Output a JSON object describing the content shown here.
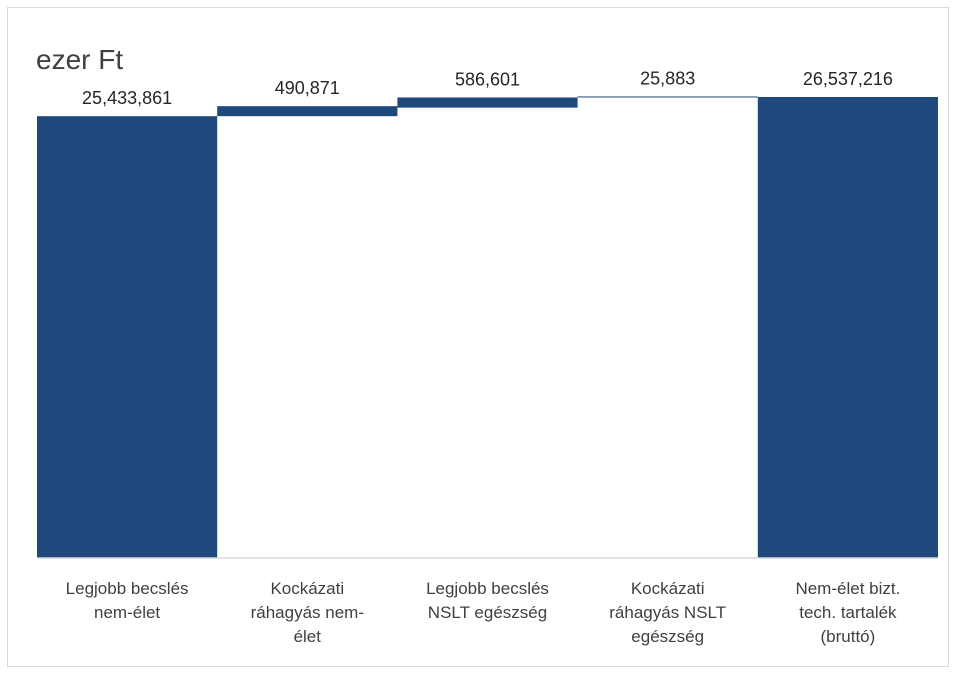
{
  "chart_data": {
    "type": "bar",
    "subtype": "waterfall",
    "unit_label": "ezer Ft",
    "categories": [
      [
        "Legjobb becslés",
        "nem-élet"
      ],
      [
        "Kockázati",
        "ráhagyás nem-",
        "élet"
      ],
      [
        "Legjobb becslés",
        "NSLT egészség"
      ],
      [
        "Kockázati",
        "ráhagyás NSLT",
        "egészség"
      ],
      [
        "Nem-élet bizt.",
        "tech. tartalék",
        "(bruttó)"
      ]
    ],
    "values": [
      25433861,
      490871,
      586601,
      25883,
      26537216
    ],
    "value_labels": [
      "25,433,861",
      "490,871",
      "586,601",
      "25,883",
      "26,537,216"
    ],
    "bar_kinds": [
      "total",
      "increase",
      "increase",
      "increase",
      "total"
    ],
    "ylim": [
      0,
      26537216
    ],
    "grid": false,
    "legend": "none",
    "colors": {
      "bar": "#1f497d",
      "axis": "#d9d9d9"
    }
  }
}
